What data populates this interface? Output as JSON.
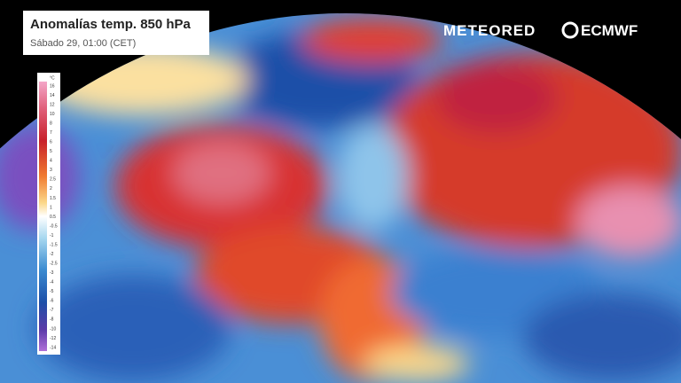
{
  "header": {
    "title": "Anomalías temp. 850 hPa",
    "subtitle": "Sábado 29, 01:00 (CET)"
  },
  "logos": {
    "brand": "METEORED",
    "model": "ECMWF"
  },
  "legend": {
    "unit": "°C",
    "ticks": [
      16,
      14,
      12,
      10,
      8,
      7,
      6,
      5,
      4,
      3,
      2.5,
      2,
      1.5,
      1,
      0.5,
      -0.5,
      -1,
      -1.5,
      -2,
      -2.5,
      -3,
      -4,
      -5,
      -6,
      -7,
      -8,
      -10,
      -12,
      -14
    ]
  }
}
